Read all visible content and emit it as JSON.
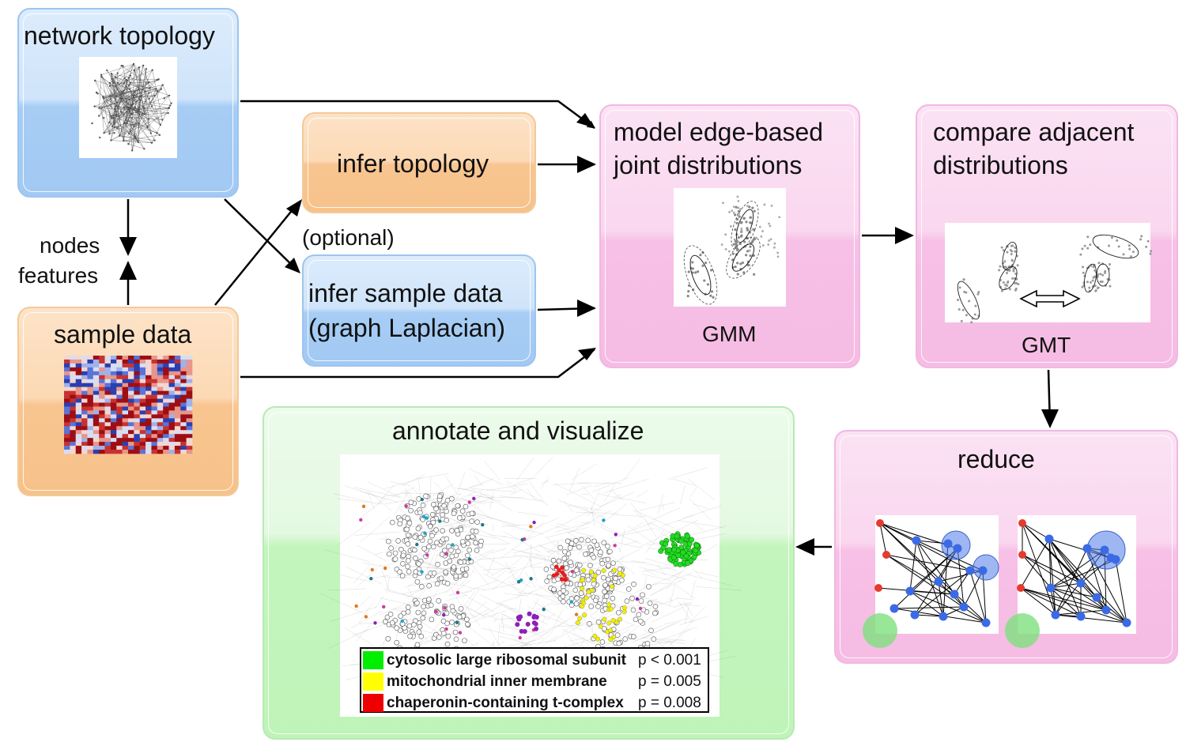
{
  "boxes": {
    "network_topology": "network topology",
    "sample_data": "sample data",
    "infer_topology": "infer topology",
    "infer_sample_line1": "infer sample data",
    "infer_sample_line2": "(graph Laplacian)",
    "model_line1": "model edge-based",
    "model_line2": "joint distributions",
    "model_caption": "GMM",
    "compare_line1": "compare adjacent",
    "compare_line2": "distributions",
    "compare_caption": "GMT",
    "reduce": "reduce",
    "annotate": "annotate and visualize"
  },
  "annotations": {
    "optional": "(optional)",
    "nodes": "nodes",
    "features": "features"
  },
  "legend": [
    {
      "label": "cytosolic large ribosomal subunit",
      "p": "p < 0.001",
      "color": "#00ee00"
    },
    {
      "label": "mitochondrial inner membrane",
      "p": "p = 0.005",
      "color": "#ffff00"
    },
    {
      "label": "chaperonin-containing t-complex",
      "p": "p = 0.008",
      "color": "#ee0000"
    }
  ],
  "colors": {
    "blue_box": "#a7cdf5",
    "orange_box": "#f8c590",
    "pink_box": "#f7c0e6",
    "green_box": "#c3f5bd"
  }
}
